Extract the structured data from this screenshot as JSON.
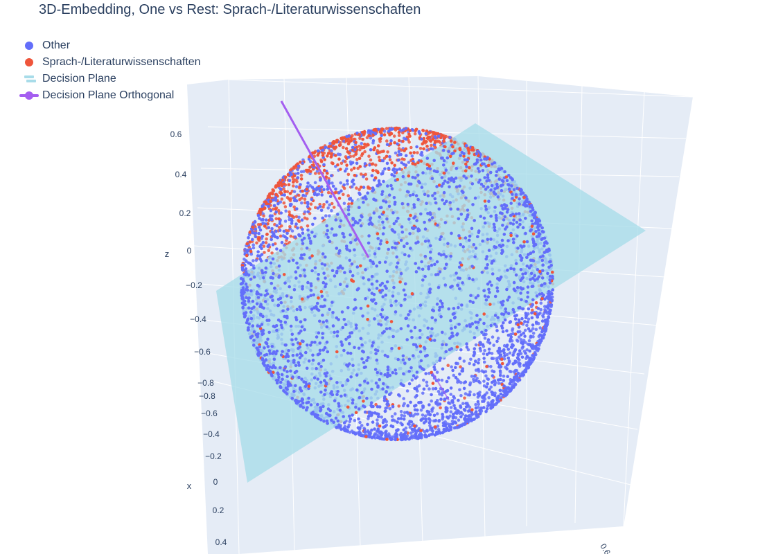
{
  "chart_data": {
    "type": "scatter",
    "subtype": "3d-scatter-with-plane",
    "title": "3D-Embedding, One vs Rest: Sprach-/Literaturwissenschaften",
    "series": [
      {
        "name": "Other",
        "color": "#636efa",
        "marker": "dot",
        "approx_count": 4500,
        "region": "unit-sphere surface, all sides"
      },
      {
        "name": "Sprach-/Literaturwissenschaften",
        "color": "#ef553b",
        "marker": "dot",
        "approx_count": 750,
        "region": "concentrated at upper-left cap of sphere (decision-plane normal side)"
      },
      {
        "name": "Decision Plane",
        "color": "#a8dce9",
        "marker": "plane"
      },
      {
        "name": "Decision Plane Orthogonal",
        "color": "#a45ef0",
        "marker": "line"
      }
    ],
    "axes": {
      "z": {
        "title": "z",
        "ticks": [
          "0.6",
          "0.4",
          "0.2",
          "0",
          "−0.2",
          "−0.4",
          "−0.6",
          "−0.8"
        ]
      },
      "x": {
        "title": "x",
        "ticks": [
          "−0.8",
          "−0.6",
          "−0.4",
          "−0.2",
          "0",
          "0.2",
          "0.4"
        ]
      },
      "y": {
        "title": "",
        "ticks": [
          "0.6"
        ]
      }
    },
    "legend_position": "top-left",
    "grid": true,
    "background": "#e5ecf6"
  }
}
